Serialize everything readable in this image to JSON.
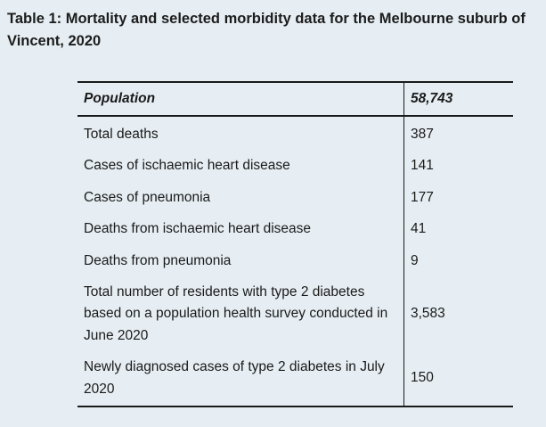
{
  "caption": "Table 1: Mortality and selected morbidity data for the Melbourne suburb of Vincent, 2020",
  "table": {
    "header": {
      "label": "Population",
      "value": "58,743"
    },
    "rows": [
      {
        "label": "Total deaths",
        "value": "387"
      },
      {
        "label": "Cases of ischaemic heart disease",
        "value": "141"
      },
      {
        "label": "Cases of pneumonia",
        "value": "177"
      },
      {
        "label": "Deaths from ischaemic heart disease",
        "value": "41"
      },
      {
        "label": "Deaths from pneumonia",
        "value": "9"
      },
      {
        "label": "Total number of residents with type 2 diabetes based on a population health survey conducted in June 2020",
        "value": "3,583"
      },
      {
        "label": "Newly diagnosed cases of type 2 diabetes in July 2020",
        "value": "150"
      }
    ]
  }
}
